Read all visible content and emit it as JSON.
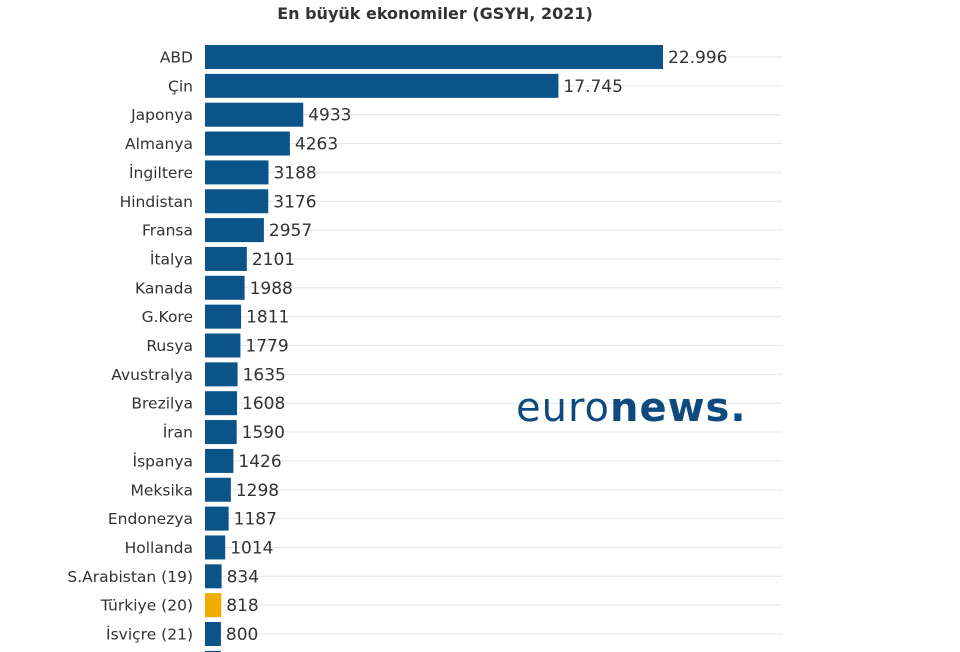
{
  "chart_data": {
    "type": "bar",
    "orientation": "horizontal",
    "title": "En büyük ekonomiler (GSYH, 2021)",
    "xlabel": "",
    "ylabel": "",
    "grid": true,
    "categories": [
      "ABD",
      "Çin",
      "Japonya",
      "Almanya",
      "İngiltere",
      "Hindistan",
      "Fransa",
      "İtalya",
      "Kanada",
      "G.Kore",
      "Rusya",
      "Avustralya",
      "Brezilya",
      "İran",
      "İspanya",
      "Meksika",
      "Endonezya",
      "Hollanda",
      "S.Arabistan (19)",
      "Türkiye (20)",
      "İsviçre (21)"
    ],
    "values": [
      22996,
      17745,
      4933,
      4263,
      3188,
      3176,
      2957,
      2101,
      1988,
      1811,
      1779,
      1635,
      1608,
      1590,
      1426,
      1298,
      1187,
      1014,
      834,
      818,
      800
    ],
    "value_labels": [
      "22.996",
      "17.745",
      "4933",
      "4263",
      "3188",
      "3176",
      "2957",
      "2101",
      "1988",
      "1811",
      "1779",
      "1635",
      "1608",
      "1590",
      "1426",
      "1298",
      "1187",
      "1014",
      "834",
      "818",
      "800"
    ],
    "highlight": "Türkiye (20)",
    "colors": {
      "bar": "#0b5489",
      "highlight": "#f0ad00",
      "grid": "#e6e6e6",
      "text": "#333333"
    }
  },
  "logo": {
    "thin": "euro",
    "bold": "news",
    "dot": "."
  }
}
